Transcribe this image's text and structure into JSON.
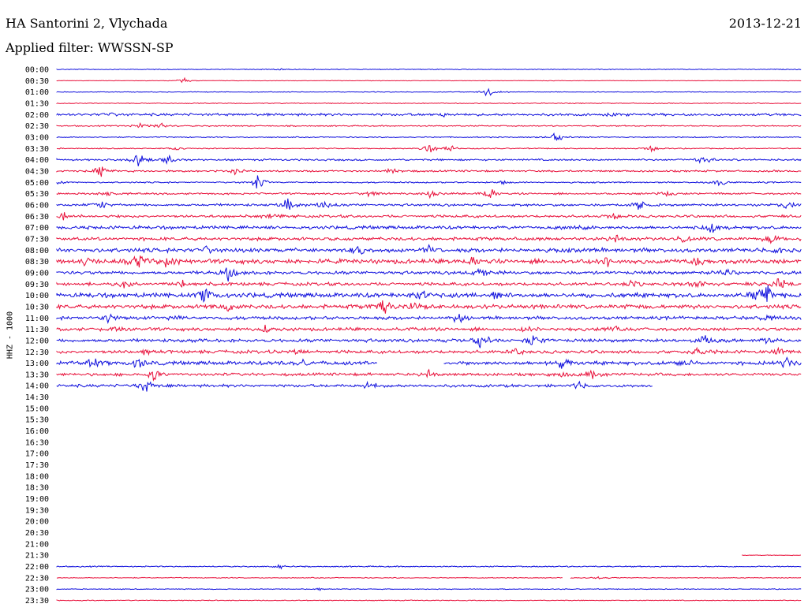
{
  "header": {
    "station": "HA Santorini 2, Vlychada",
    "date": "2013-12-21",
    "filter": "Applied filter: WWSSN-SP"
  },
  "colors": {
    "blue": "#1010dd",
    "red": "#e8103a"
  },
  "chart_data": {
    "type": "line",
    "title": "HA Santorini 2, Vlychada",
    "ylabel": "HHZ - 1000",
    "xlabel": "",
    "rows": [
      {
        "label": "00:00",
        "color": "blue",
        "segments": [
          [
            0,
            1
          ]
        ],
        "noise": 0.4,
        "events": [
          [
            0.3,
            1.0
          ]
        ]
      },
      {
        "label": "00:30",
        "color": "red",
        "segments": [
          [
            0,
            1
          ]
        ],
        "noise": 0.25,
        "events": [
          [
            0.17,
            3
          ]
        ]
      },
      {
        "label": "01:00",
        "color": "blue",
        "segments": [
          [
            0,
            1
          ]
        ],
        "noise": 0.35,
        "events": [
          [
            0.58,
            6
          ]
        ]
      },
      {
        "label": "01:30",
        "color": "red",
        "segments": [
          [
            0,
            1
          ]
        ],
        "noise": 0.4,
        "events": []
      },
      {
        "label": "02:00",
        "color": "blue",
        "segments": [
          [
            0,
            1
          ]
        ],
        "noise": 1.2,
        "events": [
          [
            0.07,
            2.5
          ],
          [
            0.52,
            2
          ],
          [
            0.75,
            2
          ]
        ]
      },
      {
        "label": "02:30",
        "color": "red",
        "segments": [
          [
            0,
            1
          ]
        ],
        "noise": 0.6,
        "events": [
          [
            0.11,
            3
          ],
          [
            0.14,
            4
          ]
        ]
      },
      {
        "label": "03:00",
        "color": "blue",
        "segments": [
          [
            0,
            1
          ]
        ],
        "noise": 0.5,
        "events": [
          [
            0.67,
            7
          ]
        ]
      },
      {
        "label": "03:30",
        "color": "red",
        "segments": [
          [
            0,
            1
          ]
        ],
        "noise": 0.5,
        "events": [
          [
            0.16,
            2
          ],
          [
            0.5,
            5
          ],
          [
            0.53,
            4
          ],
          [
            0.8,
            4
          ]
        ]
      },
      {
        "label": "04:00",
        "color": "blue",
        "segments": [
          [
            0,
            1
          ]
        ],
        "noise": 0.9,
        "events": [
          [
            0.11,
            8
          ],
          [
            0.15,
            5
          ],
          [
            0.87,
            6
          ]
        ]
      },
      {
        "label": "04:30",
        "color": "red",
        "segments": [
          [
            0,
            1
          ]
        ],
        "noise": 0.9,
        "events": [
          [
            0.06,
            7
          ],
          [
            0.24,
            3
          ],
          [
            0.45,
            3
          ]
        ]
      },
      {
        "label": "05:00",
        "color": "blue",
        "segments": [
          [
            0,
            1
          ]
        ],
        "noise": 0.7,
        "events": [
          [
            0.0,
            4
          ],
          [
            0.27,
            8
          ],
          [
            0.6,
            2
          ],
          [
            0.89,
            5
          ]
        ]
      },
      {
        "label": "05:30",
        "color": "red",
        "segments": [
          [
            0,
            1
          ]
        ],
        "noise": 0.9,
        "events": [
          [
            0.07,
            3
          ],
          [
            0.42,
            4
          ],
          [
            0.5,
            4
          ],
          [
            0.58,
            9
          ],
          [
            0.82,
            3
          ]
        ]
      },
      {
        "label": "06:00",
        "color": "blue",
        "segments": [
          [
            0,
            1
          ]
        ],
        "noise": 1.2,
        "events": [
          [
            0.06,
            5
          ],
          [
            0.31,
            7
          ],
          [
            0.36,
            4
          ],
          [
            0.78,
            7
          ],
          [
            0.98,
            5
          ]
        ]
      },
      {
        "label": "06:30",
        "color": "red",
        "segments": [
          [
            0,
            1
          ]
        ],
        "noise": 1.3,
        "events": [
          [
            0.01,
            6
          ],
          [
            0.29,
            3
          ],
          [
            0.75,
            3
          ]
        ]
      },
      {
        "label": "07:00",
        "color": "blue",
        "segments": [
          [
            0,
            1
          ]
        ],
        "noise": 1.6,
        "events": [
          [
            0.7,
            5
          ],
          [
            0.88,
            8
          ]
        ]
      },
      {
        "label": "07:30",
        "color": "red",
        "segments": [
          [
            0,
            1
          ]
        ],
        "noise": 1.6,
        "events": [
          [
            0.75,
            5
          ],
          [
            0.84,
            4
          ],
          [
            0.96,
            5
          ]
        ]
      },
      {
        "label": "08:00",
        "color": "blue",
        "segments": [
          [
            0,
            1
          ]
        ],
        "noise": 2.0,
        "events": [
          [
            0.2,
            4
          ],
          [
            0.41,
            6
          ],
          [
            0.5,
            6
          ],
          [
            0.97,
            4
          ]
        ]
      },
      {
        "label": "08:30",
        "color": "red",
        "segments": [
          [
            0,
            1
          ]
        ],
        "noise": 2.2,
        "events": [
          [
            0.04,
            4
          ],
          [
            0.11,
            7
          ],
          [
            0.15,
            7
          ],
          [
            0.56,
            5
          ],
          [
            0.74,
            5
          ],
          [
            0.86,
            5
          ]
        ]
      },
      {
        "label": "09:00",
        "color": "blue",
        "segments": [
          [
            0,
            1
          ]
        ],
        "noise": 1.6,
        "events": [
          [
            0.23,
            9
          ],
          [
            0.57,
            5
          ],
          [
            0.9,
            5
          ]
        ]
      },
      {
        "label": "09:30",
        "color": "red",
        "segments": [
          [
            0,
            1
          ]
        ],
        "noise": 1.6,
        "events": [
          [
            0.09,
            5
          ],
          [
            0.17,
            5
          ],
          [
            0.77,
            4
          ],
          [
            0.86,
            5
          ],
          [
            0.97,
            8
          ]
        ]
      },
      {
        "label": "10:00",
        "color": "blue",
        "segments": [
          [
            0,
            1
          ]
        ],
        "noise": 2.2,
        "events": [
          [
            0.2,
            8
          ],
          [
            0.49,
            7
          ],
          [
            0.59,
            4
          ],
          [
            0.95,
            20
          ]
        ]
      },
      {
        "label": "10:30",
        "color": "red",
        "segments": [
          [
            0,
            1
          ]
        ],
        "noise": 2.0,
        "events": [
          [
            0.23,
            4
          ],
          [
            0.44,
            8
          ],
          [
            0.48,
            6
          ]
        ]
      },
      {
        "label": "11:00",
        "color": "blue",
        "segments": [
          [
            0,
            1
          ]
        ],
        "noise": 1.6,
        "events": [
          [
            0.07,
            6
          ],
          [
            0.16,
            4
          ],
          [
            0.54,
            5
          ],
          [
            0.95,
            4
          ]
        ]
      },
      {
        "label": "11:30",
        "color": "red",
        "segments": [
          [
            0,
            1
          ]
        ],
        "noise": 1.6,
        "events": [
          [
            0.08,
            3
          ],
          [
            0.28,
            3
          ],
          [
            0.63,
            3
          ],
          [
            0.75,
            4
          ]
        ]
      },
      {
        "label": "12:00",
        "color": "blue",
        "segments": [
          [
            0,
            1
          ]
        ],
        "noise": 1.6,
        "events": [
          [
            0.57,
            9
          ],
          [
            0.64,
            7
          ],
          [
            0.87,
            6
          ],
          [
            0.96,
            5
          ]
        ]
      },
      {
        "label": "12:30",
        "color": "red",
        "segments": [
          [
            0,
            1
          ]
        ],
        "noise": 1.6,
        "events": [
          [
            0.12,
            4
          ],
          [
            0.32,
            5
          ],
          [
            0.62,
            5
          ],
          [
            0.86,
            5
          ],
          [
            0.97,
            4
          ]
        ]
      },
      {
        "label": "13:00",
        "color": "blue",
        "segments": [
          [
            0,
            0.43
          ],
          [
            0.52,
            1
          ]
        ],
        "noise": 1.8,
        "events": [
          [
            0.05,
            6
          ],
          [
            0.11,
            6
          ],
          [
            0.33,
            5
          ],
          [
            0.68,
            7
          ],
          [
            0.84,
            5
          ],
          [
            0.98,
            6
          ]
        ]
      },
      {
        "label": "13:30",
        "color": "red",
        "segments": [
          [
            0,
            1
          ]
        ],
        "noise": 1.4,
        "events": [
          [
            0.13,
            6
          ],
          [
            0.5,
            5
          ],
          [
            0.68,
            4
          ],
          [
            0.72,
            6
          ]
        ]
      },
      {
        "label": "14:00",
        "color": "blue",
        "segments": [
          [
            0,
            0.8
          ]
        ],
        "noise": 1.4,
        "events": [
          [
            0.12,
            9
          ],
          [
            0.42,
            6
          ],
          [
            0.7,
            4
          ]
        ]
      },
      {
        "label": "14:30",
        "color": "red",
        "segments": [],
        "noise": 0,
        "events": []
      },
      {
        "label": "15:00",
        "color": "blue",
        "segments": [],
        "noise": 0,
        "events": []
      },
      {
        "label": "15:30",
        "color": "red",
        "segments": [],
        "noise": 0,
        "events": []
      },
      {
        "label": "16:00",
        "color": "blue",
        "segments": [],
        "noise": 0,
        "events": []
      },
      {
        "label": "16:30",
        "color": "red",
        "segments": [],
        "noise": 0,
        "events": []
      },
      {
        "label": "17:00",
        "color": "blue",
        "segments": [],
        "noise": 0,
        "events": []
      },
      {
        "label": "17:30",
        "color": "red",
        "segments": [],
        "noise": 0,
        "events": []
      },
      {
        "label": "18:00",
        "color": "blue",
        "segments": [],
        "noise": 0,
        "events": []
      },
      {
        "label": "18:30",
        "color": "red",
        "segments": [],
        "noise": 0,
        "events": []
      },
      {
        "label": "19:00",
        "color": "blue",
        "segments": [],
        "noise": 0,
        "events": []
      },
      {
        "label": "19:30",
        "color": "red",
        "segments": [],
        "noise": 0,
        "events": []
      },
      {
        "label": "20:00",
        "color": "blue",
        "segments": [],
        "noise": 0,
        "events": []
      },
      {
        "label": "20:30",
        "color": "red",
        "segments": [],
        "noise": 0,
        "events": []
      },
      {
        "label": "21:00",
        "color": "blue",
        "segments": [],
        "noise": 0,
        "events": []
      },
      {
        "label": "21:30",
        "color": "red",
        "segments": [
          [
            0.92,
            1
          ]
        ],
        "noise": 0.3,
        "events": []
      },
      {
        "label": "22:00",
        "color": "blue",
        "segments": [
          [
            0,
            1
          ]
        ],
        "noise": 0.6,
        "events": [
          [
            0.3,
            3
          ]
        ]
      },
      {
        "label": "22:30",
        "color": "red",
        "segments": [
          [
            0,
            0.68
          ],
          [
            0.69,
            1
          ]
        ],
        "noise": 0.4,
        "events": [
          [
            0.73,
            2
          ]
        ]
      },
      {
        "label": "23:00",
        "color": "blue",
        "segments": [
          [
            0,
            1
          ]
        ],
        "noise": 0.4,
        "events": [
          [
            0.35,
            2
          ]
        ]
      },
      {
        "label": "23:30",
        "color": "red",
        "segments": [
          [
            0,
            1
          ]
        ],
        "noise": 0.4,
        "events": []
      }
    ]
  }
}
